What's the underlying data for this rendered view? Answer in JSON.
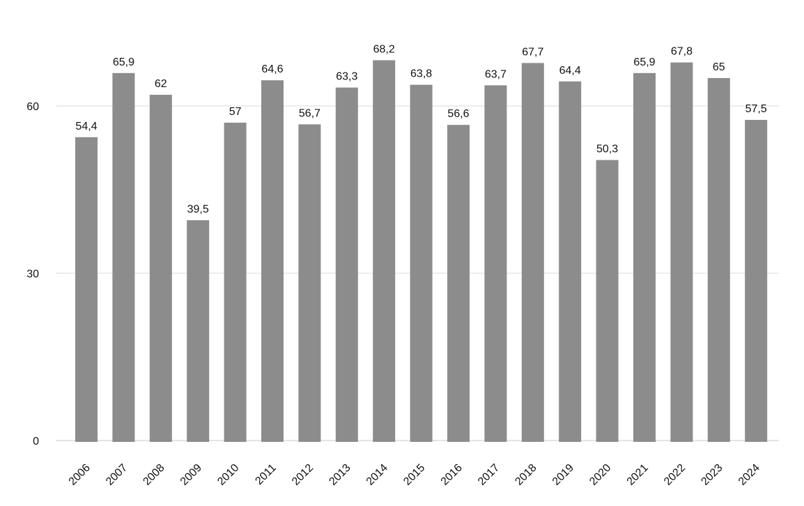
{
  "chart_data": {
    "type": "bar",
    "title": "",
    "xlabel": "",
    "ylabel": "",
    "categories": [
      "2006",
      "2007",
      "2008",
      "2009",
      "2010",
      "2011",
      "2012",
      "2013",
      "2014",
      "2015",
      "2016",
      "2017",
      "2018",
      "2019",
      "2020",
      "2021",
      "2022",
      "2023",
      "2024"
    ],
    "values": [
      54.4,
      65.9,
      62,
      39.5,
      57,
      64.6,
      56.7,
      63.3,
      68.2,
      63.8,
      56.6,
      63.7,
      67.7,
      64.4,
      50.3,
      65.9,
      67.8,
      65,
      57.5
    ],
    "value_labels": [
      "54,4",
      "65,9",
      "62",
      "39,5",
      "57",
      "64,6",
      "56,7",
      "63,3",
      "68,2",
      "63,8",
      "56,6",
      "63,7",
      "67,7",
      "64,4",
      "50,3",
      "65,9",
      "67,8",
      "65",
      "57,5"
    ],
    "ylim": [
      0,
      70
    ],
    "yticks": [
      0,
      30,
      60
    ],
    "ytick_labels": [
      "0",
      "30",
      "60"
    ],
    "grid": true,
    "legend": "none",
    "colors": {
      "bar": "#8c8c8c",
      "grid": "#d9d9d9"
    }
  }
}
